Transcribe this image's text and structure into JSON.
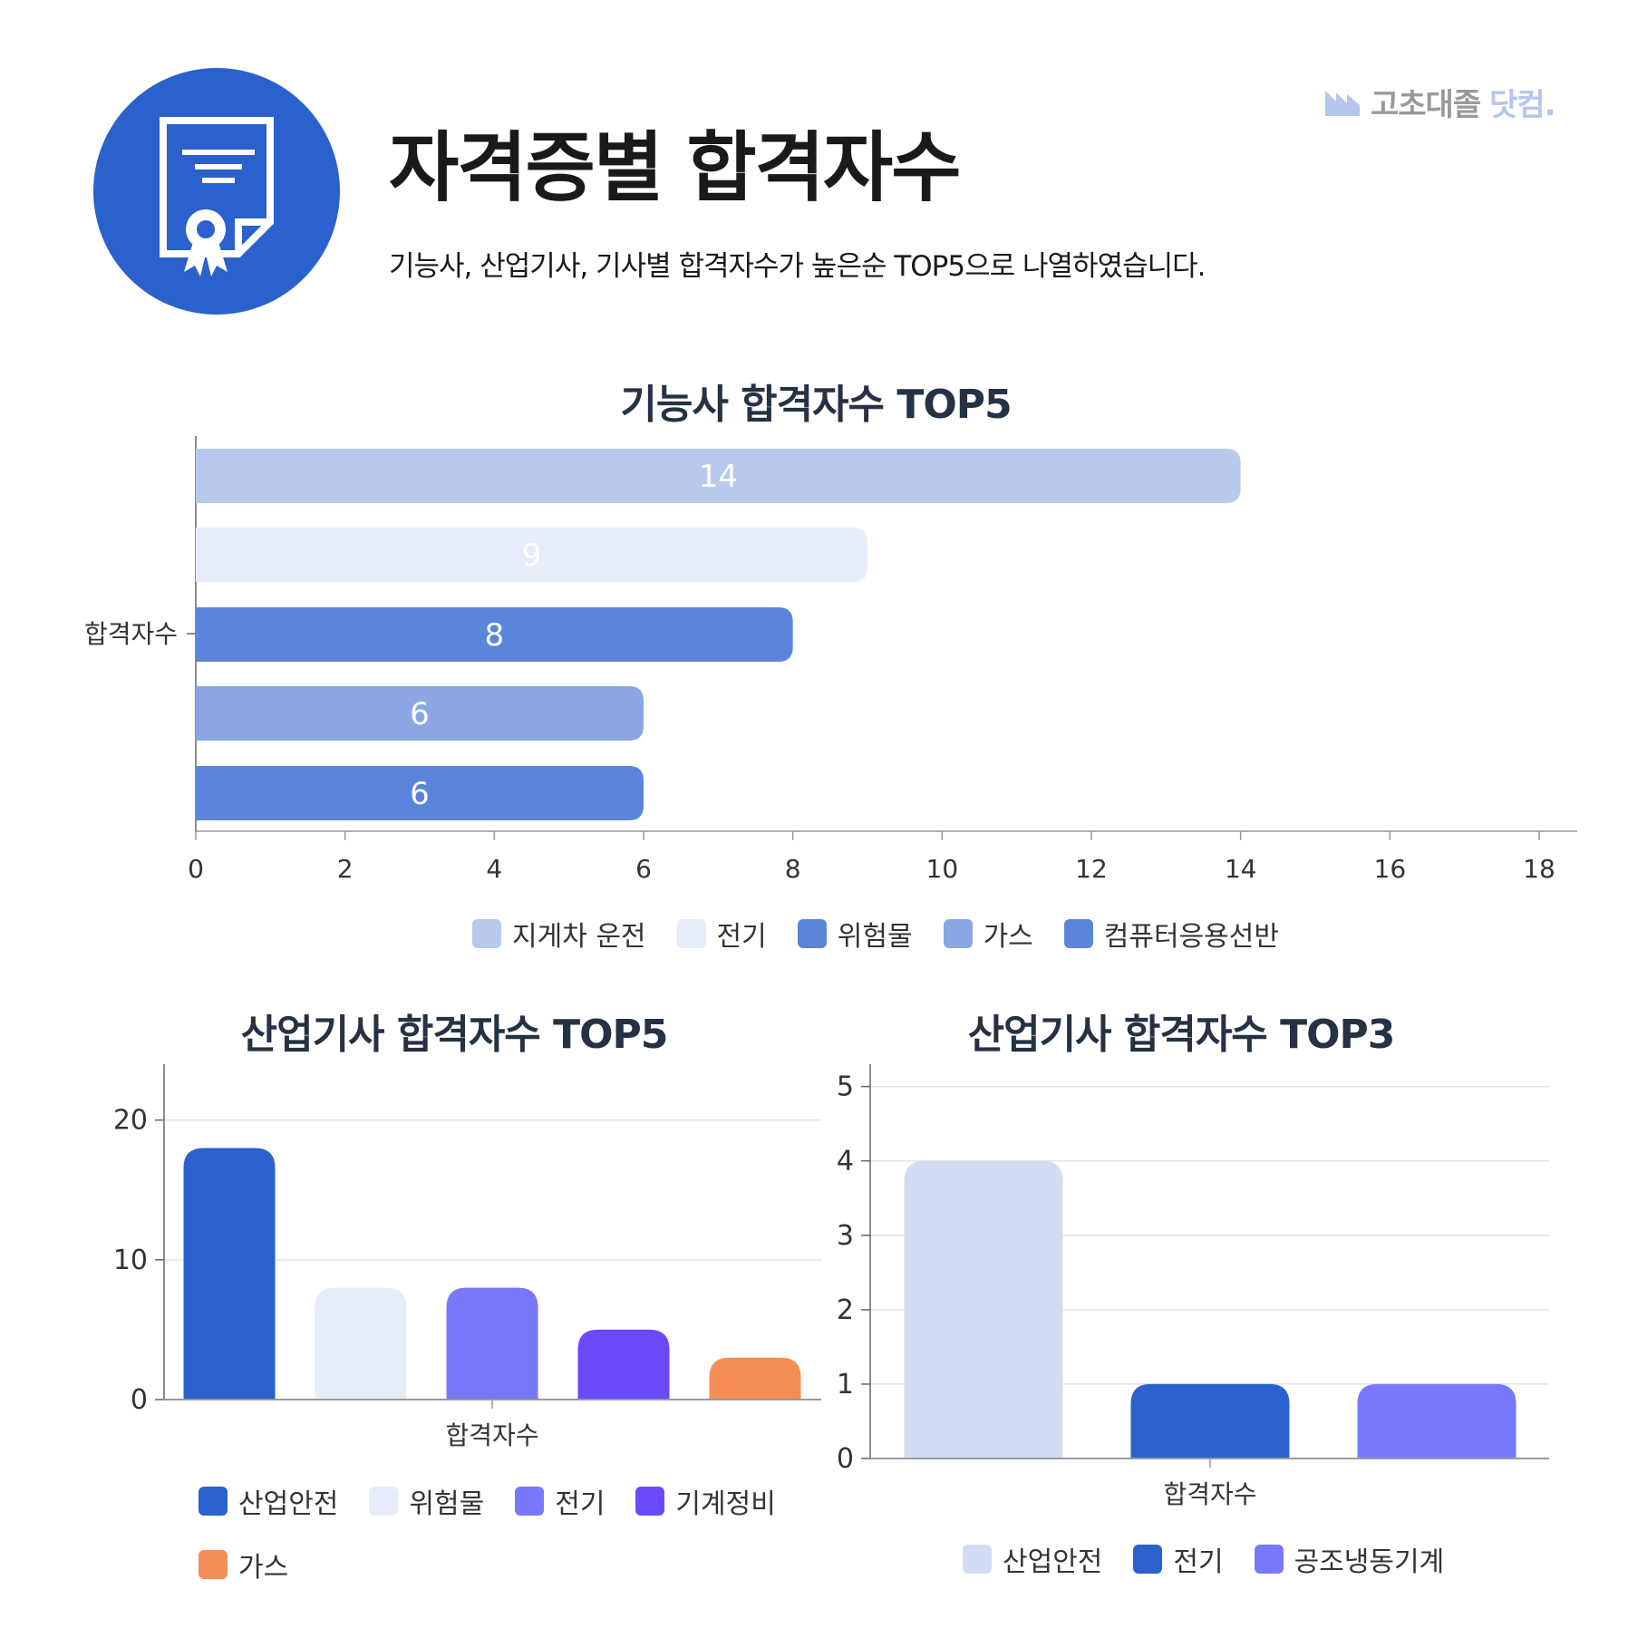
{
  "header": {
    "title": "자격증별 합격자수",
    "subtitle": "기능사, 산업기사, 기사별 합격자수가 높은순 TOP5으로 나열하였습니다.",
    "badge_icon": "certificate-icon",
    "logo": {
      "part1": "고초대졸",
      "part2": "닷컴."
    }
  },
  "chart_data": [
    {
      "type": "bar",
      "orientation": "horizontal",
      "title": "기능사 합격자수 TOP5",
      "category_label": "합격자수",
      "xlim": [
        0,
        18
      ],
      "ticks": [
        "0",
        "2",
        "4",
        "6",
        "8",
        "10",
        "12",
        "14",
        "16",
        "18"
      ],
      "grid": false,
      "legend": "bottom",
      "series": [
        {
          "name": "지게차 운전",
          "value": 14,
          "color": "#b8c9ee"
        },
        {
          "name": "전기",
          "value": 9,
          "color": "#e6ecf8"
        },
        {
          "name": "위험물",
          "value": 8,
          "color": "#5b85db"
        },
        {
          "name": "가스",
          "value": 6,
          "color": "#8aa7e4"
        },
        {
          "name": "컴퓨터응용선반",
          "value": 6,
          "color": "#5b85db"
        }
      ]
    },
    {
      "type": "bar",
      "orientation": "vertical",
      "title": "산업기사 합격자수 TOP5",
      "category_label": "합격자수",
      "ylim": [
        0,
        24
      ],
      "ticks": [
        "0",
        "10",
        "20"
      ],
      "grid": true,
      "legend": "bottom",
      "series": [
        {
          "name": "산업안전",
          "value": 18,
          "color": "#2a61cc"
        },
        {
          "name": "위험물",
          "value": 8,
          "color": "#e6ecf8"
        },
        {
          "name": "전기",
          "value": 8,
          "color": "#7878fc"
        },
        {
          "name": "기계정비",
          "value": 5,
          "color": "#6a4afc"
        },
        {
          "name": "가스",
          "value": 3,
          "color": "#f48d56"
        }
      ]
    },
    {
      "type": "bar",
      "orientation": "vertical",
      "title": "산업기사 합격자수 TOP3",
      "category_label": "합격자수",
      "ylim": [
        0,
        5.3
      ],
      "ticks": [
        "0",
        "1",
        "2",
        "3",
        "4",
        "5"
      ],
      "grid": true,
      "legend": "bottom",
      "series": [
        {
          "name": "산업안전",
          "value": 4,
          "color": "#d2ddf3"
        },
        {
          "name": "전기",
          "value": 1,
          "color": "#2a61cc"
        },
        {
          "name": "공조냉동기계",
          "value": 1,
          "color": "#7878fc"
        }
      ]
    }
  ]
}
